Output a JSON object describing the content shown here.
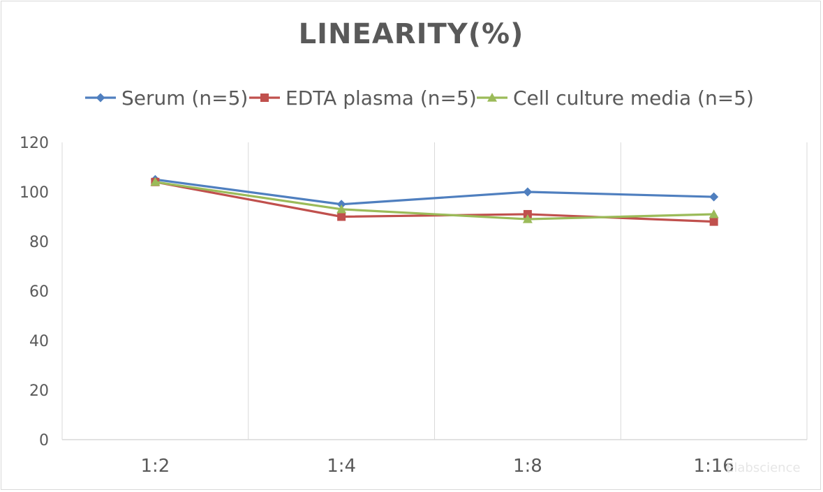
{
  "chart_data": {
    "type": "line",
    "title": "LINEARITY(%)",
    "xlabel": "",
    "ylabel": "",
    "categories": [
      "1:2",
      "1:4",
      "1:8",
      "1:16"
    ],
    "ylim": [
      0,
      120
    ],
    "yticks": [
      0,
      20,
      40,
      60,
      80,
      100,
      120
    ],
    "grid": "vertical",
    "legend_position": "top",
    "series": [
      {
        "name": "Serum (n=5)",
        "values": [
          105,
          95,
          100,
          98
        ],
        "color": "#4f7fbf",
        "marker": "diamond"
      },
      {
        "name": "EDTA plasma (n=5)",
        "values": [
          104,
          90,
          91,
          88
        ],
        "color": "#c0504d",
        "marker": "square"
      },
      {
        "name": "Cell culture media (n=5)",
        "values": [
          104,
          93,
          89,
          91
        ],
        "color": "#9bbb59",
        "marker": "triangle"
      }
    ]
  },
  "watermark": "Elabscience"
}
